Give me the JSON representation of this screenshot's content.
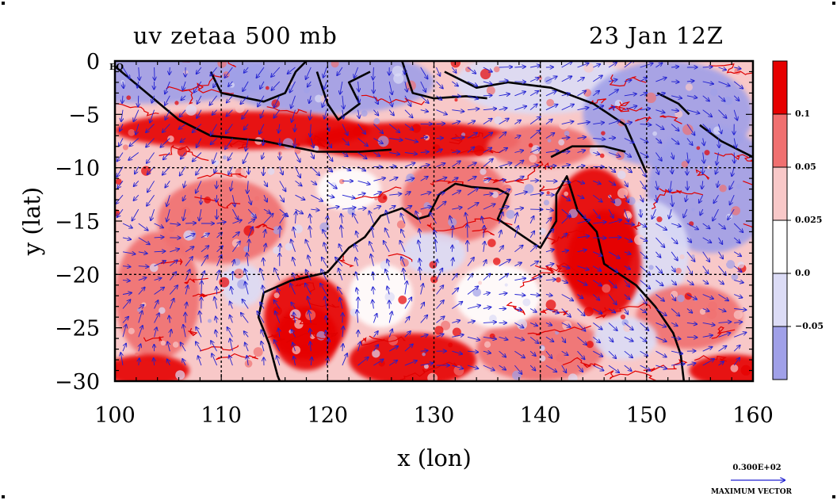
{
  "title": {
    "left": "uv zetaa 500 mb",
    "right": "23 Jan 12Z"
  },
  "axes": {
    "xlabel": "x (lon)",
    "ylabel": "y (lat)",
    "x_ticks": [
      "100",
      "110",
      "120",
      "130",
      "140",
      "150",
      "160"
    ],
    "y_ticks": [
      "0",
      "−5",
      "−10",
      "−15",
      "−20",
      "−25",
      "−30"
    ],
    "x_range": [
      100,
      160
    ],
    "y_range": [
      -30,
      0
    ],
    "origin_tick": "EQ"
  },
  "colorbar": {
    "labels": [
      "0.1",
      "0.05",
      "0.025",
      "0.0",
      "−0.05"
    ],
    "colors": [
      "#e60000",
      "#f07070",
      "#f8c8c8",
      "#ffffff",
      "#dcdcf6",
      "#a0a0e8"
    ]
  },
  "vector_legend": {
    "value": "0.300E+02",
    "label": "MAXIMUM VECTOR"
  },
  "map_colors": {
    "strong_pos": "#e60000",
    "mid_pos": "#f07070",
    "weak_pos": "#f8c8c8",
    "neutral": "#ffffff",
    "weak_neg": "#dcdcf6",
    "strong_neg": "#a0a0e8",
    "contour": "#e00000",
    "vector": "#2020d0",
    "coast": "#000000"
  }
}
